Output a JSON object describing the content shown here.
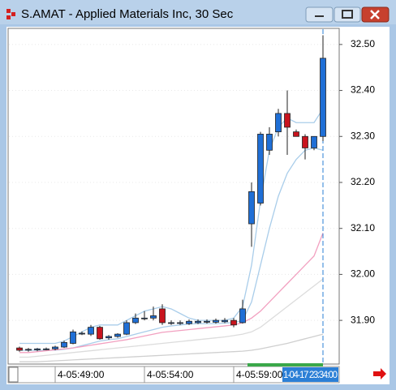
{
  "chart_data": {
    "type": "candlestick",
    "title": "S.AMAT - Applied Materials Inc, 30 Sec",
    "categories": [
      null,
      null,
      null,
      null,
      "4-05:49:00",
      null,
      null,
      null,
      null,
      null,
      null,
      null,
      null,
      null,
      "4-05:54:00",
      null,
      null,
      null,
      null,
      null,
      null,
      null,
      null,
      null,
      "4-05:59:00",
      null,
      null,
      null,
      null,
      null,
      null,
      null,
      null,
      null,
      "1-04-17 23:34:00"
    ],
    "open": [
      31.84,
      31.836,
      31.836,
      31.838,
      31.838,
      31.842,
      31.85,
      31.872,
      31.87,
      31.885,
      31.862,
      31.865,
      31.87,
      31.895,
      31.905,
      31.905,
      31.925,
      31.895,
      31.895,
      31.893,
      31.895,
      31.896,
      31.896,
      31.897,
      31.9,
      31.895,
      32.11,
      32.155,
      32.27,
      32.31,
      32.35,
      32.31,
      32.3,
      32.275,
      32.3
    ],
    "high": [
      31.843,
      31.84,
      31.84,
      31.841,
      31.845,
      31.856,
      31.88,
      31.876,
      31.89,
      31.888,
      31.868,
      31.872,
      31.9,
      31.915,
      31.92,
      31.93,
      31.935,
      31.9,
      31.9,
      31.902,
      31.902,
      31.902,
      31.904,
      31.905,
      31.905,
      31.945,
      32.2,
      32.31,
      32.32,
      32.36,
      32.4,
      32.315,
      32.305,
      32.3,
      32.52
    ],
    "low": [
      31.832,
      31.832,
      31.833,
      31.835,
      31.835,
      31.84,
      31.848,
      31.868,
      31.866,
      31.858,
      31.858,
      31.862,
      31.868,
      31.892,
      31.9,
      31.9,
      31.89,
      31.89,
      31.89,
      31.89,
      31.892,
      31.893,
      31.893,
      31.894,
      31.885,
      31.893,
      32.06,
      32.15,
      32.26,
      32.3,
      32.26,
      32.3,
      32.25,
      32.27,
      32.29
    ],
    "close": [
      31.835,
      31.837,
      31.838,
      31.838,
      31.842,
      31.852,
      31.875,
      31.872,
      31.885,
      31.86,
      31.865,
      31.87,
      31.895,
      31.905,
      31.905,
      31.91,
      31.895,
      31.895,
      31.895,
      31.898,
      31.898,
      31.898,
      31.9,
      31.9,
      31.89,
      31.925,
      32.18,
      32.305,
      32.305,
      32.35,
      32.32,
      32.3,
      32.275,
      32.3,
      32.47
    ],
    "up_color": "#1f6fd6",
    "down_color": "#c8141e",
    "overlays": [
      {
        "color": "#a9cdea",
        "values": [
          31.85,
          31.85,
          31.85,
          31.85,
          31.85,
          31.855,
          31.865,
          31.875,
          31.885,
          31.89,
          31.89,
          31.89,
          31.9,
          31.91,
          31.92,
          31.925,
          31.93,
          31.925,
          31.915,
          31.905,
          31.9,
          31.9,
          31.9,
          31.9,
          31.905,
          31.93,
          32.02,
          32.16,
          32.27,
          32.32,
          32.34,
          32.33,
          32.33,
          32.33,
          32.36
        ]
      },
      {
        "color": "#a9cdea",
        "values": [
          31.835,
          31.835,
          31.835,
          31.835,
          31.835,
          31.837,
          31.84,
          31.845,
          31.85,
          31.855,
          31.858,
          31.86,
          31.865,
          31.87,
          31.875,
          31.88,
          31.885,
          31.888,
          31.89,
          31.892,
          31.893,
          31.893,
          31.893,
          31.894,
          31.895,
          31.9,
          31.94,
          32.02,
          32.1,
          32.17,
          32.22,
          32.25,
          32.27,
          32.275,
          32.27
        ]
      },
      {
        "color": "#f2a0c0",
        "values": [
          31.83,
          31.83,
          31.832,
          31.834,
          31.836,
          31.838,
          31.84,
          31.843,
          31.846,
          31.849,
          31.852,
          31.855,
          31.858,
          31.862,
          31.866,
          31.87,
          31.874,
          31.876,
          31.878,
          31.88,
          31.882,
          31.884,
          31.886,
          31.888,
          31.89,
          31.895,
          31.905,
          31.92,
          31.94,
          31.96,
          31.98,
          32.0,
          32.02,
          32.04,
          32.09
        ]
      },
      {
        "color": "#dcdcdc",
        "values": [
          31.82,
          31.82,
          31.822,
          31.824,
          31.826,
          31.828,
          31.83,
          31.832,
          31.834,
          31.836,
          31.838,
          31.84,
          31.842,
          31.844,
          31.846,
          31.848,
          31.85,
          31.852,
          31.854,
          31.856,
          31.858,
          31.86,
          31.862,
          31.864,
          31.867,
          31.87,
          31.875,
          31.885,
          31.9,
          31.915,
          31.93,
          31.945,
          31.96,
          31.975,
          31.99
        ]
      },
      {
        "color": "#cfcfcf",
        "values": [
          31.81,
          31.81,
          31.81,
          31.811,
          31.812,
          31.813,
          31.814,
          31.815,
          31.816,
          31.817,
          31.818,
          31.819,
          31.82,
          31.821,
          31.822,
          31.823,
          31.824,
          31.825,
          31.826,
          31.827,
          31.828,
          31.829,
          31.83,
          31.831,
          31.832,
          31.833,
          31.835,
          31.838,
          31.842,
          31.846,
          31.85,
          31.855,
          31.86,
          31.865,
          31.87
        ]
      }
    ],
    "ylim": [
      31.805,
      32.535
    ],
    "yticks": [
      {
        "value": 31.9,
        "label": "31.90"
      },
      {
        "value": 32.0,
        "label": "32.00"
      },
      {
        "value": 32.1,
        "label": "32.10"
      },
      {
        "value": 32.2,
        "label": "32.20"
      },
      {
        "value": 32.3,
        "label": "32.30"
      },
      {
        "value": 32.4,
        "label": "32.40"
      },
      {
        "value": 32.5,
        "label": "32.50"
      }
    ]
  }
}
